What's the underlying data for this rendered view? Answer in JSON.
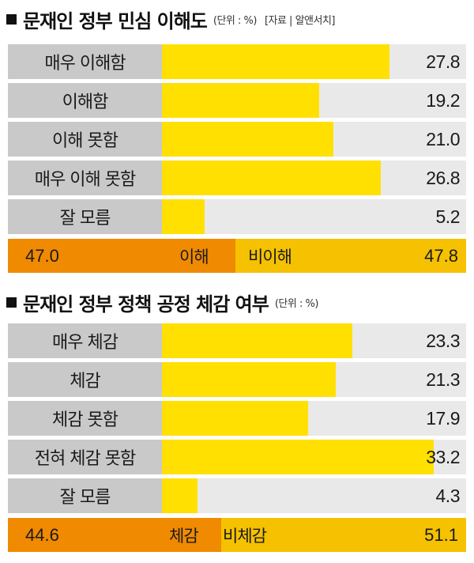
{
  "chart_data": [
    {
      "type": "bar",
      "title": "문재인 정부 민심 이해도",
      "unit": "(단위 : %)",
      "source": "[자료 | 알앤서치]",
      "xlim": [
        0,
        37.2
      ],
      "categories": [
        "매우 이해함",
        "이해함",
        "이해 못함",
        "매우 이해 못함",
        "잘 모름"
      ],
      "values": [
        27.8,
        19.2,
        21.0,
        26.8,
        5.2
      ],
      "value_labels": [
        "27.8",
        "19.2",
        "21.0",
        "26.8",
        "5.2"
      ],
      "summary": {
        "left_value": 47.0,
        "left_value_label": "47.0",
        "left_label": "이해",
        "right_value": 47.8,
        "right_value_label": "47.8",
        "right_label": "비이해"
      }
    },
    {
      "type": "bar",
      "title": "문재인 정부 정책 공정 체감 여부",
      "unit": "(단위 : %)",
      "xlim": [
        0,
        37.2
      ],
      "categories": [
        "매우 체감",
        "체감",
        "체감 못함",
        "전혀 체감 못함",
        "잘 모름"
      ],
      "values": [
        23.3,
        21.3,
        17.9,
        33.2,
        4.3
      ],
      "value_labels": [
        "23.3",
        "21.3",
        "17.9",
        "33.2",
        "4.3"
      ],
      "summary": {
        "left_value": 44.6,
        "left_value_label": "44.6",
        "left_label": "체감",
        "right_value": 51.1,
        "right_value_label": "51.1",
        "right_label": "비체감"
      }
    }
  ],
  "colors": {
    "bar": "#ffe000",
    "label_bg": "#c9c9c9",
    "row_bg": "#e9e9e9",
    "summary_left": "#f08a00",
    "summary_right": "#f5c100"
  }
}
